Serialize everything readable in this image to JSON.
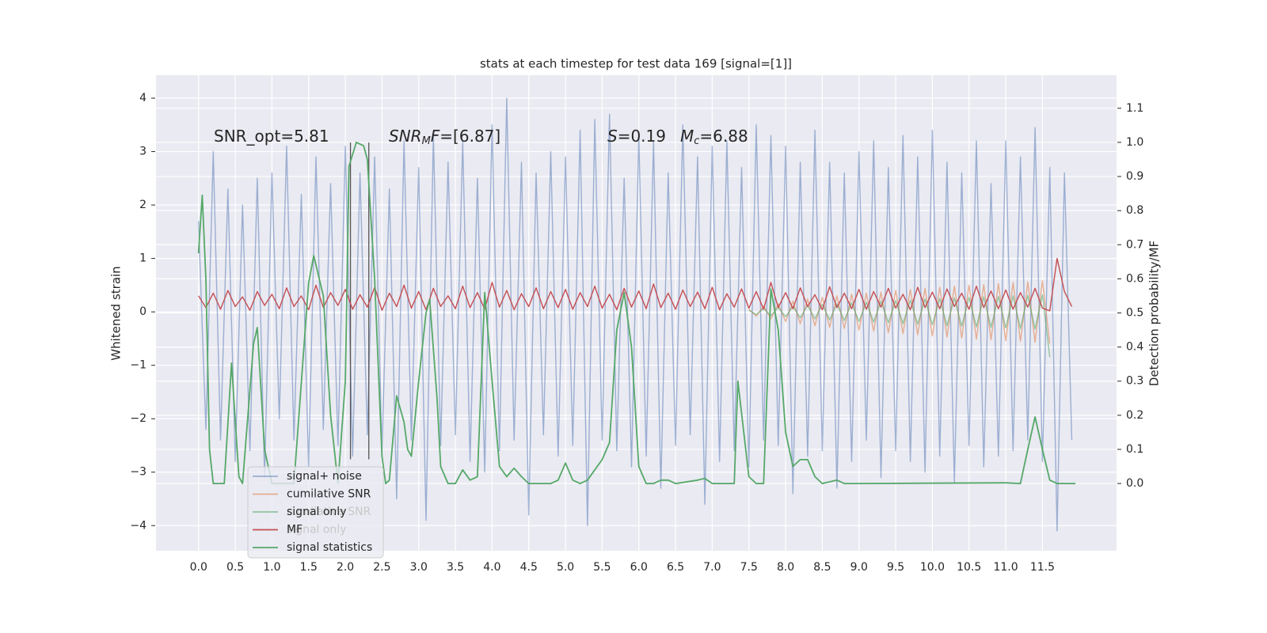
{
  "chart_data": {
    "type": "line",
    "title": "stats at each timestep for test data 169 [signal=[1]]",
    "ylabel": "Whitened strain",
    "y2label": "Detection probability/MF",
    "xlim": [
      -0.58,
      12.51
    ],
    "ylim": [
      -4.47,
      4.43
    ],
    "y2lim": [
      -0.197,
      1.197
    ],
    "grid": true,
    "background": "#eaeaf2",
    "legend": "lower left",
    "xticks": [
      {
        "value": 0,
        "label": "0.0"
      },
      0.5,
      {
        "value": 1,
        "label": "1.0"
      },
      1.5,
      {
        "value": 2,
        "label": "2.0"
      },
      2.5,
      {
        "value": 3,
        "label": "3.0"
      },
      3.5,
      {
        "value": 4,
        "label": "4.0"
      },
      4.5,
      {
        "value": 5,
        "label": "5.0"
      },
      5.5,
      {
        "value": 6,
        "label": "6.0"
      },
      6.5,
      {
        "value": 7,
        "label": "7.0"
      },
      7.5,
      {
        "value": 8,
        "label": "8.0"
      },
      8.5,
      {
        "value": 9,
        "label": "9.0"
      },
      9.5,
      {
        "value": 10,
        "label": "10.0"
      },
      10.5,
      {
        "value": 11,
        "label": "11.0"
      },
      11.5
    ],
    "yticks": [
      {
        "value": -4,
        "label": "−4"
      },
      {
        "value": -3,
        "label": "−3"
      },
      {
        "value": -2,
        "label": "−2"
      },
      {
        "value": -1,
        "label": "−1"
      },
      0,
      1,
      2,
      3,
      4
    ],
    "y2ticks": [
      {
        "value": 0,
        "label": "0.0"
      },
      0.1,
      0.2,
      0.3,
      0.4,
      0.5,
      0.6,
      0.7,
      0.8,
      0.9,
      {
        "value": 1,
        "label": "1.0"
      },
      1.1
    ],
    "annotations": [
      {
        "parts": [
          {
            "text": "SNR_opt=5.81"
          }
        ]
      },
      {
        "parts": [
          {
            "text": "SNR",
            "italic": true
          },
          {
            "text": "M",
            "italic": true,
            "sub": true
          },
          {
            "text": "F",
            "italic": true
          },
          {
            "text": "=[6.87]"
          }
        ]
      },
      {
        "parts": [
          {
            "text": "S",
            "italic": true
          },
          {
            "text": "=0.19"
          }
        ]
      },
      {
        "parts": [
          {
            "text": "M",
            "italic": true
          },
          {
            "text": "c",
            "italic": true,
            "sub": true
          },
          {
            "text": "=6.88"
          }
        ]
      }
    ],
    "vlines": {
      "x": [
        2.07,
        2.32
      ],
      "ymin": -2.76,
      "ymax": 3.17,
      "color": "#555555"
    },
    "ghost_legend": [
      "cumilative SNR",
      "signal only"
    ],
    "x": [
      0.0,
      0.1,
      0.2,
      0.3,
      0.4,
      0.5,
      0.6,
      0.7,
      0.8,
      0.9,
      1.0,
      1.1,
      1.2,
      1.3,
      1.4,
      1.5,
      1.6,
      1.7,
      1.8,
      1.9,
      2.0,
      2.1,
      2.2,
      2.3,
      2.4,
      2.5,
      2.6,
      2.7,
      2.8,
      2.9,
      3.0,
      3.1,
      3.2,
      3.3,
      3.4,
      3.5,
      3.6,
      3.7,
      3.8,
      3.9,
      4.0,
      4.1,
      4.2,
      4.3,
      4.4,
      4.5,
      4.6,
      4.7,
      4.8,
      4.9,
      5.0,
      5.1,
      5.2,
      5.3,
      5.4,
      5.5,
      5.6,
      5.7,
      5.8,
      5.9,
      6.0,
      6.1,
      6.2,
      6.3,
      6.4,
      6.5,
      6.6,
      6.7,
      6.8,
      6.9,
      7.0,
      7.1,
      7.2,
      7.3,
      7.4,
      7.5,
      7.6,
      7.7,
      7.8,
      7.9,
      8.0,
      8.1,
      8.2,
      8.3,
      8.4,
      8.5,
      8.6,
      8.7,
      8.8,
      8.9,
      9.0,
      9.1,
      9.2,
      9.3,
      9.4,
      9.5,
      9.6,
      9.7,
      9.8,
      9.9,
      10.0,
      10.1,
      10.2,
      10.3,
      10.4,
      10.5,
      10.6,
      10.7,
      10.8,
      10.9,
      11.0,
      11.1,
      11.2,
      11.3,
      11.4,
      11.5,
      11.6,
      11.7,
      11.8,
      11.9
    ],
    "series": [
      {
        "name": "signal+ noise",
        "color": "#4c72b0",
        "alpha": 0.5,
        "values": [
          1.7,
          -2.2,
          3.0,
          -2.4,
          2.3,
          -2.8,
          2.0,
          -2.6,
          2.5,
          -3.1,
          2.6,
          -2.0,
          3.1,
          -2.4,
          2.2,
          -2.9,
          2.9,
          -2.2,
          2.4,
          -2.5,
          3.1,
          -2.7,
          2.6,
          -2.3,
          2.9,
          -2.6,
          2.3,
          -3.5,
          3.2,
          -2.4,
          2.7,
          -3.9,
          3.3,
          -2.5,
          2.8,
          -2.3,
          3.2,
          -2.8,
          2.5,
          -3.0,
          3.5,
          -2.6,
          4.0,
          -2.4,
          2.8,
          -3.8,
          2.6,
          -2.3,
          3.0,
          -2.7,
          2.9,
          -2.5,
          3.4,
          -4.0,
          3.6,
          -2.4,
          3.7,
          -2.6,
          2.5,
          -2.9,
          3.3,
          -2.7,
          3.2,
          -3.3,
          2.6,
          -2.5,
          3.5,
          -2.3,
          2.9,
          -3.6,
          3.1,
          -2.8,
          3.2,
          -2.6,
          2.7,
          -2.9,
          3.5,
          -2.4,
          3.3,
          -2.5,
          3.1,
          -3.4,
          2.8,
          -2.7,
          3.4,
          -2.6,
          2.8,
          -3.3,
          2.6,
          -2.8,
          3.0,
          -2.4,
          3.2,
          -3.1,
          2.7,
          -2.6,
          3.3,
          -2.8,
          2.9,
          -3.0,
          3.4,
          -2.7,
          2.8,
          -3.2,
          2.6,
          -2.5,
          3.2,
          -2.9,
          2.4,
          -2.7,
          3.2,
          -2.6,
          2.9,
          -2.4,
          3.45,
          -2.8,
          2.7,
          -4.1,
          2.6,
          -2.4
        ]
      },
      {
        "name": "cumilative SNR",
        "color": "#dd8452",
        "alpha": 0.6,
        "x": [
          7.5,
          7.6,
          7.7,
          7.8,
          7.9,
          8.0,
          8.1,
          8.2,
          8.3,
          8.4,
          8.5,
          8.6,
          8.7,
          8.8,
          8.9,
          9.0,
          9.1,
          9.2,
          9.3,
          9.4,
          9.5,
          9.6,
          9.7,
          9.8,
          9.9,
          10.0,
          10.1,
          10.2,
          10.3,
          10.4,
          10.5,
          10.6,
          10.7,
          10.8,
          10.9,
          11.0,
          11.1,
          11.2,
          11.3,
          11.4,
          11.5,
          11.6
        ],
        "values": [
          0.05,
          -0.08,
          0.11,
          -0.13,
          0.15,
          -0.18,
          0.2,
          -0.22,
          0.24,
          -0.26,
          0.27,
          -0.29,
          0.3,
          -0.31,
          0.33,
          -0.34,
          0.35,
          -0.36,
          0.37,
          -0.39,
          0.4,
          -0.41,
          0.42,
          -0.43,
          0.44,
          -0.45,
          0.46,
          -0.47,
          0.48,
          -0.49,
          0.5,
          -0.51,
          0.51,
          -0.52,
          0.53,
          -0.54,
          0.55,
          -0.55,
          0.56,
          -0.57,
          0.58,
          -0.59
        ]
      },
      {
        "name": "signal only",
        "color": "#55a868",
        "alpha": 0.6,
        "x": [
          7.5,
          7.6,
          7.7,
          7.8,
          7.9,
          8.0,
          8.1,
          8.2,
          8.3,
          8.4,
          8.5,
          8.6,
          8.7,
          8.8,
          8.9,
          9.0,
          9.1,
          9.2,
          9.3,
          9.4,
          9.5,
          9.6,
          9.7,
          9.8,
          9.9,
          10.0,
          10.1,
          10.2,
          10.3,
          10.4,
          10.5,
          10.6,
          10.7,
          10.8,
          10.9,
          11.0,
          11.1,
          11.2,
          11.3,
          11.4,
          11.5,
          11.6
        ],
        "values": [
          0.03,
          -0.05,
          0.06,
          -0.07,
          0.08,
          -0.09,
          0.1,
          -0.11,
          0.12,
          -0.13,
          0.14,
          -0.15,
          0.15,
          -0.16,
          0.17,
          -0.18,
          0.18,
          -0.19,
          0.2,
          -0.2,
          0.21,
          -0.22,
          0.22,
          -0.23,
          0.24,
          -0.24,
          0.25,
          -0.26,
          0.26,
          -0.27,
          0.27,
          -0.28,
          0.28,
          -0.29,
          0.29,
          -0.3,
          0.3,
          -0.31,
          0.31,
          -0.32,
          0.32,
          -0.85
        ]
      },
      {
        "name": "MF",
        "color": "#c44e52",
        "alpha": 1,
        "values": [
          0.3,
          0.08,
          0.35,
          0.05,
          0.4,
          0.1,
          0.28,
          0.03,
          0.38,
          0.12,
          0.33,
          0.06,
          0.45,
          0.1,
          0.3,
          0.04,
          0.5,
          0.08,
          0.36,
          0.12,
          0.42,
          0.05,
          0.32,
          0.09,
          0.46,
          0.03,
          0.35,
          0.1,
          0.5,
          0.07,
          0.38,
          0.04,
          0.44,
          0.1,
          0.3,
          0.06,
          0.48,
          0.08,
          0.36,
          0.05,
          0.55,
          0.09,
          0.4,
          0.04,
          0.34,
          0.1,
          0.45,
          0.06,
          0.38,
          0.08,
          0.42,
          0.05,
          0.36,
          0.1,
          0.48,
          0.07,
          0.33,
          0.04,
          0.44,
          0.09,
          0.39,
          0.06,
          0.52,
          0.08,
          0.35,
          0.05,
          0.41,
          0.1,
          0.37,
          0.06,
          0.46,
          0.04,
          0.34,
          0.09,
          0.43,
          0.07,
          0.38,
          0.05,
          0.55,
          0.08,
          0.36,
          0.06,
          0.45,
          0.1,
          0.32,
          0.04,
          0.47,
          0.08,
          0.35,
          0.06,
          0.42,
          0.05,
          0.38,
          0.09,
          0.44,
          0.07,
          0.33,
          0.04,
          0.46,
          0.08,
          0.37,
          0.06,
          0.43,
          0.1,
          0.35,
          0.05,
          0.48,
          0.08,
          0.39,
          0.06,
          0.41,
          0.05,
          0.36,
          0.09,
          0.44,
          0.07,
          0.02,
          1.0,
          0.38,
          0.1
        ]
      },
      {
        "name": "signal statistics",
        "color": "#55a868",
        "alpha": 1,
        "axis": "y2",
        "x": [
          0.0,
          0.05,
          0.1,
          0.15,
          0.2,
          0.35,
          0.45,
          0.55,
          0.6,
          0.75,
          0.8,
          0.9,
          1.0,
          1.3,
          1.5,
          1.57,
          1.7,
          1.8,
          1.9,
          2.0,
          2.05,
          2.15,
          2.25,
          2.3,
          2.4,
          2.5,
          2.55,
          2.6,
          2.7,
          2.8,
          2.85,
          2.9,
          3.0,
          3.1,
          3.15,
          3.25,
          3.3,
          3.4,
          3.5,
          3.6,
          3.7,
          3.8,
          3.9,
          4.0,
          4.1,
          4.2,
          4.3,
          4.4,
          4.5,
          4.8,
          4.9,
          5.0,
          5.1,
          5.2,
          5.3,
          5.4,
          5.5,
          5.6,
          5.7,
          5.8,
          5.9,
          6.0,
          6.1,
          6.2,
          6.3,
          6.4,
          6.5,
          6.8,
          6.9,
          7.0,
          7.3,
          7.35,
          7.5,
          7.6,
          7.7,
          7.8,
          7.9,
          8.0,
          8.1,
          8.2,
          8.3,
          8.4,
          8.5,
          8.7,
          8.8,
          9.0,
          11.0,
          11.2,
          11.3,
          11.4,
          11.5,
          11.6,
          11.7,
          11.95
        ],
        "values": [
          0.675,
          0.845,
          0.6,
          0.1,
          0.0,
          0.0,
          0.353,
          0.02,
          0.0,
          0.41,
          0.457,
          0.1,
          0.0,
          0.0,
          0.587,
          0.668,
          0.55,
          0.2,
          0.0,
          0.3,
          0.93,
          1.0,
          0.99,
          0.95,
          0.6,
          0.08,
          0.0,
          0.01,
          0.257,
          0.18,
          0.1,
          0.08,
          0.3,
          0.5,
          0.54,
          0.25,
          0.05,
          0.0,
          0.0,
          0.04,
          0.01,
          0.02,
          0.56,
          0.3,
          0.05,
          0.02,
          0.045,
          0.02,
          0.0,
          0.0,
          0.01,
          0.06,
          0.01,
          0.0,
          0.01,
          0.04,
          0.07,
          0.12,
          0.45,
          0.56,
          0.4,
          0.05,
          0.0,
          0.0,
          0.01,
          0.01,
          0.0,
          0.01,
          0.015,
          0.0,
          0.0,
          0.3,
          0.02,
          0.0,
          0.0,
          0.57,
          0.45,
          0.15,
          0.05,
          0.07,
          0.07,
          0.02,
          0.0,
          0.01,
          0.0,
          0.0,
          0.002,
          0.0,
          0.1,
          0.195,
          0.1,
          0.01,
          0.0,
          0.0
        ]
      }
    ]
  }
}
